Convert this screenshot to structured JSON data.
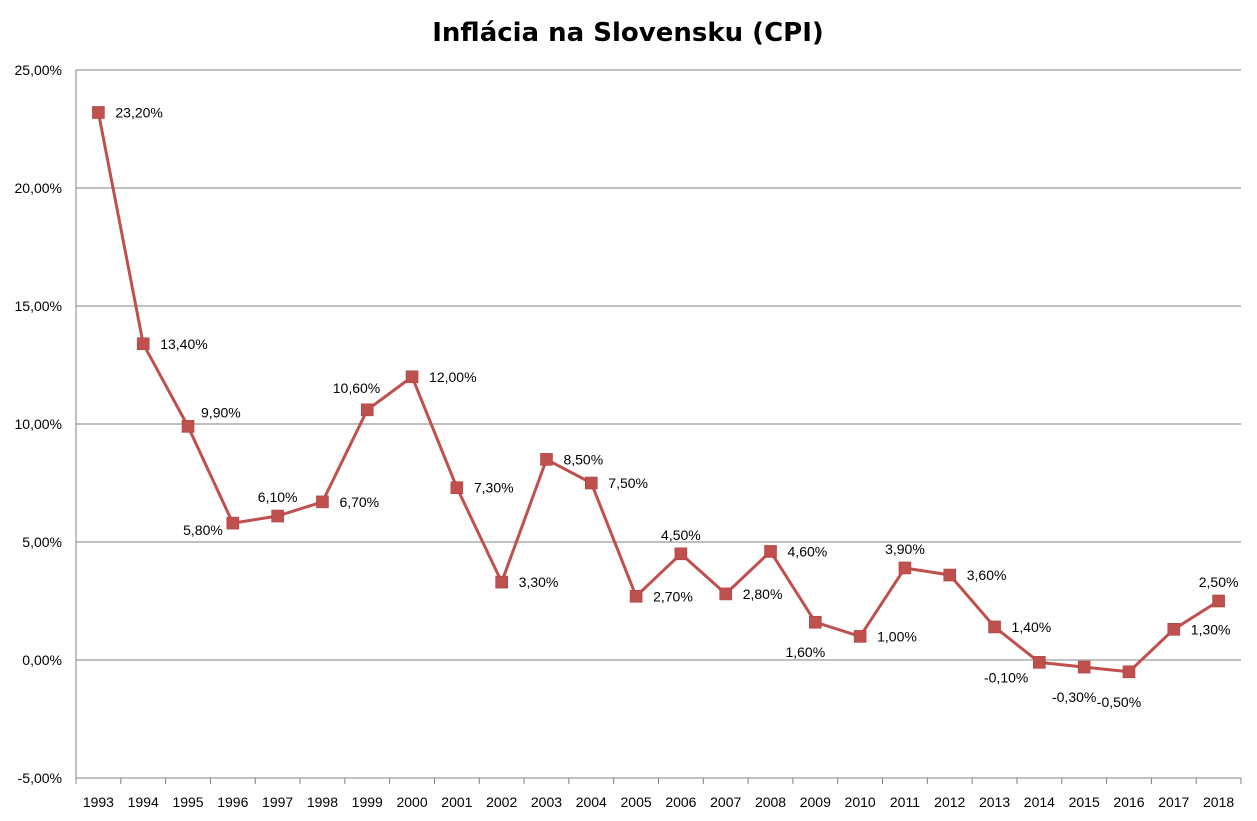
{
  "chart_data": {
    "type": "line",
    "title": "Inflácia na Slovensku (CPI)",
    "xlabel": "",
    "ylabel": "",
    "categories": [
      "1993",
      "1994",
      "1995",
      "1996",
      "1997",
      "1998",
      "1999",
      "2000",
      "2001",
      "2002",
      "2003",
      "2004",
      "2005",
      "2006",
      "2007",
      "2008",
      "2009",
      "2010",
      "2011",
      "2012",
      "2013",
      "2014",
      "2015",
      "2016",
      "2017",
      "2018"
    ],
    "series": [
      {
        "values": [
          23.2,
          13.4,
          9.9,
          5.8,
          6.1,
          6.7,
          10.6,
          12.0,
          7.3,
          3.3,
          8.5,
          7.5,
          2.7,
          4.5,
          2.8,
          4.6,
          1.6,
          1.0,
          3.9,
          3.6,
          1.4,
          -0.1,
          -0.3,
          -0.5,
          1.3,
          2.5
        ],
        "data_labels": [
          "23,20%",
          "13,40%",
          "9,90%",
          "5,80%",
          "6,10%",
          "6,70%",
          "10,60%",
          "12,00%",
          "7,30%",
          "3,30%",
          "8,50%",
          "7,50%",
          "2,70%",
          "4,50%",
          "2,80%",
          "4,60%",
          "1,60%",
          "1,00%",
          "3,90%",
          "3,60%",
          "1,40%",
          "-0,10%",
          "-0,30%",
          "-0,50%",
          "1,30%",
          "2,50%"
        ],
        "label_positions": [
          "right",
          "right",
          "above-right",
          "left",
          "above",
          "right",
          "above-left",
          "right",
          "right",
          "right",
          "right",
          "right",
          "right",
          "above",
          "right",
          "right",
          "below",
          "right",
          "above",
          "right",
          "right",
          "below-left",
          "below",
          "below",
          "right",
          "above"
        ],
        "color": "#C0504D"
      }
    ],
    "ylim": [
      -5,
      25
    ],
    "y_ticks": [
      "-5,00%",
      "0,00%",
      "5,00%",
      "10,00%",
      "15,00%",
      "20,00%",
      "25,00%"
    ],
    "y_tick_values": [
      -5,
      0,
      5,
      10,
      15,
      20,
      25
    ],
    "grid": true,
    "legend": "none",
    "colors": {
      "line": "#C0504D",
      "grid": "#808080",
      "axis": "#808080"
    }
  }
}
